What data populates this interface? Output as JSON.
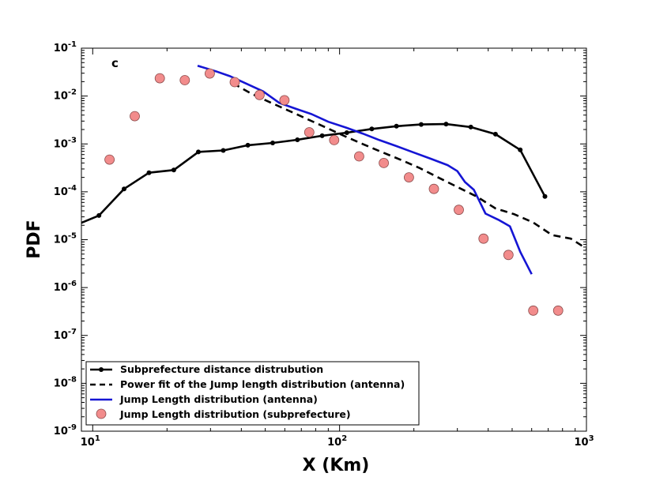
{
  "chart_data": {
    "type": "line",
    "panel_label": "c",
    "xlabel": "X (Km)",
    "ylabel": "PDF",
    "xscale": "log",
    "yscale": "log",
    "xlim": [
      9,
      1000
    ],
    "ylim": [
      1e-09,
      0.1
    ],
    "x_ticks": [
      {
        "value": 10,
        "base": "10",
        "exp": "1"
      },
      {
        "value": 100,
        "base": "10",
        "exp": "2"
      },
      {
        "value": 1000,
        "base": "10",
        "exp": "3"
      }
    ],
    "y_ticks": [
      {
        "value": 1e-09,
        "base": "10",
        "exp": "-9"
      },
      {
        "value": 1e-08,
        "base": "10",
        "exp": "-8"
      },
      {
        "value": 1e-07,
        "base": "10",
        "exp": "-7"
      },
      {
        "value": 1e-06,
        "base": "10",
        "exp": "-6"
      },
      {
        "value": 1e-05,
        "base": "10",
        "exp": "-5"
      },
      {
        "value": 0.0001,
        "base": "10",
        "exp": "-4"
      },
      {
        "value": 0.001,
        "base": "10",
        "exp": "-3"
      },
      {
        "value": 0.01,
        "base": "10",
        "exp": "-2"
      },
      {
        "value": 0.1,
        "base": "10",
        "exp": "-1"
      }
    ],
    "legend_position": "lower-left",
    "series": [
      {
        "name": "Subprefecture distance distrubution",
        "style": "solid-line-dots",
        "color": "#000000",
        "x": [
          8.7,
          10.6,
          13.4,
          16.9,
          21.3,
          26.8,
          33.8,
          42.5,
          53.6,
          67.5,
          85.0,
          107,
          135,
          170,
          214,
          270,
          340,
          428,
          539,
          679
        ],
        "y": [
          2.1e-05,
          3.2e-05,
          0.000115,
          0.00025,
          0.000285,
          0.00068,
          0.00073,
          0.00094,
          0.00105,
          0.00122,
          0.00148,
          0.00172,
          0.00205,
          0.00235,
          0.00255,
          0.0026,
          0.00225,
          0.0016,
          0.00075,
          8e-05
        ]
      },
      {
        "name": "Power fit of the Jump length distribution (antenna)",
        "style": "dashed-line",
        "color": "#000000",
        "x": [
          37,
          43.5,
          52,
          62,
          74,
          88,
          105,
          125,
          149,
          178,
          212,
          253,
          301,
          359,
          428,
          510,
          608,
          725,
          865,
          1000
        ],
        "y": [
          0.0185,
          0.0115,
          0.0075,
          0.005,
          0.0033,
          0.0022,
          0.00145,
          0.00098,
          0.00067,
          0.00046,
          0.00031,
          0.000195,
          0.000125,
          8e-05,
          4.5e-05,
          3.4e-05,
          2.3e-05,
          1.25e-05,
          1.05e-05,
          6.5e-06
        ]
      },
      {
        "name": "Jump Length distribution (antenna)",
        "style": "solid-line",
        "color": "#1515d4",
        "x": [
          26.6,
          31.5,
          36,
          42,
          49,
          57,
          66,
          77,
          90,
          106,
          124,
          145,
          170,
          200,
          234,
          274,
          300,
          322,
          350,
          390,
          440,
          490,
          540,
          600
        ],
        "y": [
          0.043,
          0.033,
          0.026,
          0.018,
          0.0125,
          0.0072,
          0.0055,
          0.0042,
          0.0029,
          0.0022,
          0.00165,
          0.0012,
          0.0009,
          0.00066,
          0.00049,
          0.00036,
          0.00027,
          0.00016,
          0.00011,
          3.5e-05,
          2.6e-05,
          1.9e-05,
          5.5e-06,
          1.9e-06
        ]
      },
      {
        "name": "Jump Length distribution (subprefecture)",
        "style": "markers",
        "color": "#f28c8c",
        "edge_color": "#8a4b4b",
        "x": [
          11.7,
          14.8,
          18.7,
          23.6,
          29.8,
          37.6,
          47.4,
          59.8,
          75.4,
          95.1,
          120,
          151,
          191,
          241,
          304,
          383,
          483,
          609,
          768
        ],
        "y": [
          0.00047,
          0.0038,
          0.0235,
          0.0215,
          0.0295,
          0.0195,
          0.0105,
          0.0082,
          0.00175,
          0.0012,
          0.00055,
          0.0004,
          0.0002,
          0.000115,
          4.2e-05,
          1.05e-05,
          4.8e-06,
          3.3e-07,
          3.3e-07
        ]
      }
    ]
  }
}
